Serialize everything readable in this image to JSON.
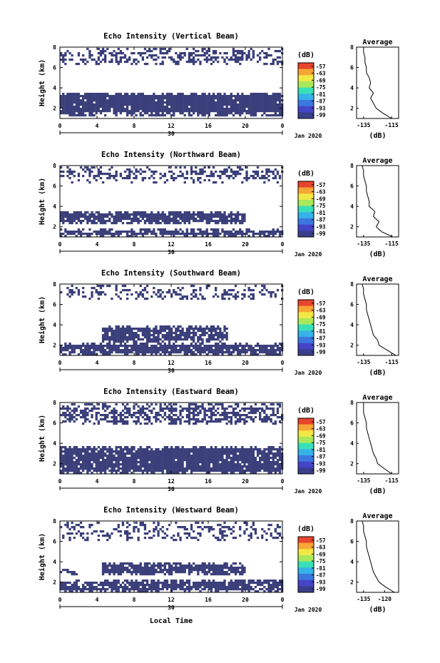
{
  "figure": {
    "xlabel": "Local Time",
    "date_label": "Jan 2020",
    "colorbar_unit": "(dB)",
    "colorbar_ticks": [
      "-57",
      "-63",
      "-69",
      "-75",
      "-81",
      "-87",
      "-93",
      "-99"
    ],
    "colorbar_colors": [
      "#e8452e",
      "#f7a533",
      "#f2e845",
      "#a8e85a",
      "#38e0b8",
      "#35b2e8",
      "#3a78e0",
      "#4444c8",
      "#3a3f8c"
    ],
    "data_color": "#3b3f7a",
    "x_ticks": [
      "0",
      "4",
      "8",
      "12",
      "16",
      "20",
      "0"
    ],
    "day_label": "30",
    "y_ticks": [
      "2",
      "4",
      "6",
      "8"
    ],
    "ylabel": "Height (km)"
  },
  "chart_data": [
    {
      "type": "heatmap",
      "title": "Echo Intensity (Vertical Beam)",
      "xlim": [
        0,
        24
      ],
      "ylim": [
        1,
        8
      ],
      "avg_title": "Average",
      "avg_xlabel": "(dB)",
      "avg_xticks": [
        "-135",
        "-115"
      ],
      "avg_xlim": [
        -140,
        -110
      ],
      "layers": [
        {
          "ybot": 1.3,
          "ytop": 3.6,
          "density": 0.96,
          "start": 0.0,
          "end": 24.0
        },
        {
          "ybot": 6.3,
          "ytop": 7.9,
          "density": 0.45,
          "start": 0.0,
          "end": 24.0
        }
      ],
      "avg_profile": {
        "height": [
          1.0,
          1.5,
          2.0,
          2.5,
          3.0,
          3.5,
          4.0,
          4.5,
          5.0,
          5.5,
          6.0,
          6.5,
          7.0,
          7.5,
          8.0
        ],
        "db": [
          -115,
          -121,
          -126,
          -128,
          -130,
          -128,
          -131,
          -130,
          -131,
          -133,
          -133,
          -134,
          -134,
          -135,
          -135
        ]
      }
    },
    {
      "type": "heatmap",
      "title": "Echo Intensity (Northward Beam)",
      "xlim": [
        0,
        24
      ],
      "ylim": [
        1,
        8
      ],
      "avg_title": "Average",
      "avg_xlabel": "(dB)",
      "avg_xticks": [
        "-135",
        "-115"
      ],
      "avg_xlim": [
        -140,
        -110
      ],
      "layers": [
        {
          "ybot": 1.0,
          "ytop": 1.8,
          "density": 0.85,
          "start": 0.0,
          "end": 24.0
        },
        {
          "ybot": 2.3,
          "ytop": 3.6,
          "density": 0.93,
          "start": 0.0,
          "end": 20.0
        },
        {
          "ybot": 6.4,
          "ytop": 7.9,
          "density": 0.4,
          "start": 0.0,
          "end": 24.0
        }
      ],
      "avg_profile": {
        "height": [
          1.0,
          1.5,
          2.0,
          2.5,
          3.0,
          3.5,
          4.0,
          4.5,
          5.0,
          5.5,
          6.0,
          6.5,
          7.0,
          7.5,
          8.0
        ],
        "db": [
          -114,
          -122,
          -126,
          -124,
          -128,
          -127,
          -131,
          -131,
          -132,
          -133,
          -133,
          -134,
          -135,
          -135,
          -136
        ]
      }
    },
    {
      "type": "heatmap",
      "title": "Echo Intensity (Southward Beam)",
      "xlim": [
        0,
        24
      ],
      "ylim": [
        1,
        8
      ],
      "avg_title": "Average",
      "avg_xlabel": "(dB)",
      "avg_xticks": [
        "-135",
        "-115"
      ],
      "avg_xlim": [
        -140,
        -110
      ],
      "layers": [
        {
          "ybot": 1.0,
          "ytop": 2.3,
          "density": 0.9,
          "start": 0.0,
          "end": 24.0
        },
        {
          "ybot": 2.3,
          "ytop": 4.0,
          "density": 0.85,
          "start": 4.5,
          "end": 18.0
        },
        {
          "ybot": 6.6,
          "ytop": 7.9,
          "density": 0.35,
          "start": 0.0,
          "end": 24.0
        }
      ],
      "avg_profile": {
        "height": [
          1.0,
          1.5,
          2.0,
          2.5,
          3.0,
          3.5,
          4.0,
          4.5,
          5.0,
          5.5,
          6.0,
          6.5,
          7.0,
          7.5,
          8.0
        ],
        "db": [
          -112,
          -118,
          -124,
          -125,
          -128,
          -129,
          -130,
          -131,
          -132,
          -133,
          -133,
          -134,
          -135,
          -135,
          -136
        ]
      }
    },
    {
      "type": "heatmap",
      "title": "Echo Intensity (Eastward Beam)",
      "xlim": [
        0,
        24
      ],
      "ylim": [
        1,
        8
      ],
      "avg_title": "Average",
      "avg_xlabel": "(dB)",
      "avg_xticks": [
        "-135",
        "-115"
      ],
      "avg_xlim": [
        -140,
        -110
      ],
      "layers": [
        {
          "ybot": 1.0,
          "ytop": 3.7,
          "density": 0.92,
          "start": 0.0,
          "end": 24.0
        },
        {
          "ybot": 5.9,
          "ytop": 7.9,
          "density": 0.55,
          "start": 0.0,
          "end": 24.0
        }
      ],
      "avg_profile": {
        "height": [
          1.0,
          1.5,
          2.0,
          2.5,
          3.0,
          3.5,
          4.0,
          4.5,
          5.0,
          5.5,
          6.0,
          6.5,
          7.0,
          7.5,
          8.0
        ],
        "db": [
          -115,
          -120,
          -125,
          -126,
          -128,
          -129,
          -130,
          -131,
          -132,
          -133,
          -133,
          -134,
          -135,
          -135,
          -135
        ]
      }
    },
    {
      "type": "heatmap",
      "title": "Echo Intensity (Westward Beam)",
      "xlim": [
        0,
        24
      ],
      "ylim": [
        1,
        8
      ],
      "avg_title": "Average",
      "avg_xlabel": "(dB)",
      "avg_xticks": [
        "-135",
        "-120"
      ],
      "avg_xlim": [
        -140,
        -110
      ],
      "layers": [
        {
          "ybot": 1.0,
          "ytop": 2.3,
          "density": 0.85,
          "start": 0.0,
          "end": 24.0
        },
        {
          "ybot": 2.6,
          "ytop": 4.0,
          "density": 0.88,
          "start": 4.5,
          "end": 20.0
        },
        {
          "ybot": 2.6,
          "ytop": 3.6,
          "density": 0.6,
          "start": 0.0,
          "end": 2.0
        },
        {
          "ybot": 6.0,
          "ytop": 7.9,
          "density": 0.3,
          "start": 0.0,
          "end": 24.0
        }
      ],
      "avg_profile": {
        "height": [
          1.0,
          1.5,
          2.0,
          2.5,
          3.0,
          3.5,
          4.0,
          4.5,
          5.0,
          5.5,
          6.0,
          6.5,
          7.0,
          7.5,
          8.0
        ],
        "db": [
          -113,
          -119,
          -124,
          -126,
          -128,
          -129,
          -130,
          -131,
          -132,
          -133,
          -133,
          -134,
          -135,
          -135,
          -136
        ]
      }
    }
  ]
}
